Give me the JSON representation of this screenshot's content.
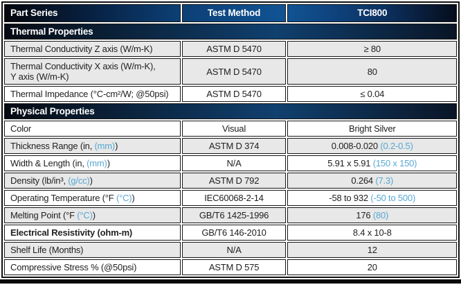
{
  "table": {
    "columns": [
      {
        "label": "Part Series"
      },
      {
        "label": "Test Method"
      },
      {
        "label": "TCI800"
      }
    ],
    "sections": [
      {
        "title": "Thermal Properties",
        "rows": [
          {
            "label": "Thermal Conductivity Z axis (W/m-K)",
            "method": "ASTM D 5470",
            "value": "≥ 80"
          },
          {
            "label": "Thermal Conductivity X axis (W/m-K),\nY axis (W/m-K)",
            "method": "ASTM D 5470",
            "value": "80"
          },
          {
            "label": "Thermal Impedance (°C-cm²/W; @50psi)",
            "method": "ASTM D 5470",
            "value": "≤ 0.04"
          }
        ]
      },
      {
        "title": "Physical Properties",
        "rows": [
          {
            "label": "Color",
            "method": "Visual",
            "value": "Bright Silver"
          },
          {
            "label": "Thickness Range (in, ",
            "label_blue": "(mm)",
            "label_post": ")",
            "method": "ASTM D 374",
            "value": "0.008-0.020 ",
            "value_blue": "(0.2-0.5)"
          },
          {
            "label": "Width & Length (in, ",
            "label_blue": "(mm)",
            "label_post": ")",
            "method": "N/A",
            "value": "5.91 x 5.91 ",
            "value_blue": "(150 x 150)"
          },
          {
            "label": "Density (lb/in³, ",
            "label_blue": "(g/cc)",
            "label_post": ")",
            "method": "ASTM D 792",
            "value": "0.264 ",
            "value_blue": "(7.3)"
          },
          {
            "label": "Operating Temperature (°F ",
            "label_blue": "(°C)",
            "label_post": ")",
            "method": "IEC60068-2-14",
            "value": "-58 to 932 ",
            "value_blue": "(-50 to 500)"
          },
          {
            "label": "Melting Point (°F ",
            "label_blue": "(°C)",
            "label_post": ")",
            "method": "GB/T6 1425-1996",
            "value": "176 ",
            "value_blue": "(80)"
          },
          {
            "label": "Electrical Resistivity (ohm-m)",
            "method": "GB/T6 146-2010",
            "value": "8.4 x 10-8"
          },
          {
            "label": "Shelf Life (Months)",
            "method": "N/A",
            "value": "12"
          },
          {
            "label": "Compressive Stress % (@50psi)",
            "method": "ASTM D 575",
            "value": "20"
          }
        ]
      }
    ],
    "colors": {
      "header_blue": "#115394",
      "header_dark": "#070b13",
      "accent_blue": "#58a7d5",
      "row_shade": "#e7e8e7"
    }
  }
}
